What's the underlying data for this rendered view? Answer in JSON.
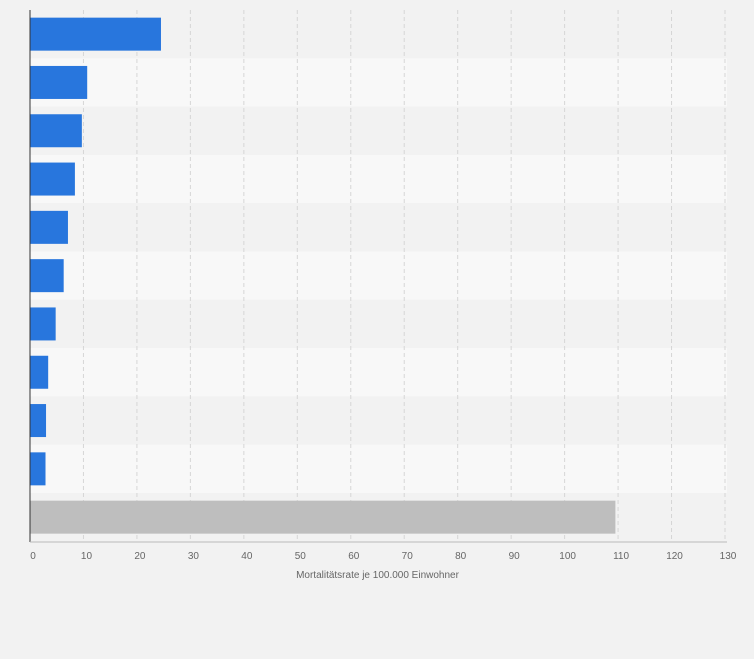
{
  "chart_data": {
    "type": "bar",
    "orientation": "horizontal",
    "title": "",
    "xlabel": "Mortalitätsrate je 100.000 Einwohner",
    "ylabel": "",
    "xlim": [
      0,
      130
    ],
    "x_ticks": [
      "0",
      "10",
      "20",
      "30",
      "40",
      "50",
      "60",
      "70",
      "80",
      "90",
      "100",
      "110",
      "120",
      "130"
    ],
    "grid": true,
    "legend": "none",
    "categories": [
      "",
      "",
      "",
      "",
      "",
      "",
      "",
      "",
      "",
      "",
      ""
    ],
    "values": [
      24.5,
      10.7,
      9.7,
      8.4,
      7.1,
      6.3,
      4.8,
      3.4,
      3.0,
      2.9,
      109.5
    ],
    "bar_colors": [
      "#2876dd",
      "#2876dd",
      "#2876dd",
      "#2876dd",
      "#2876dd",
      "#2876dd",
      "#2876dd",
      "#2876dd",
      "#2876dd",
      "#2876dd",
      "#bebebe"
    ]
  },
  "colors": {
    "background": "#f2f2f2",
    "band_light": "#f8f8f8",
    "band_dark": "#f2f2f2",
    "grid": "#d6d6d6",
    "axis": "#333333",
    "tick_text": "#666666"
  }
}
